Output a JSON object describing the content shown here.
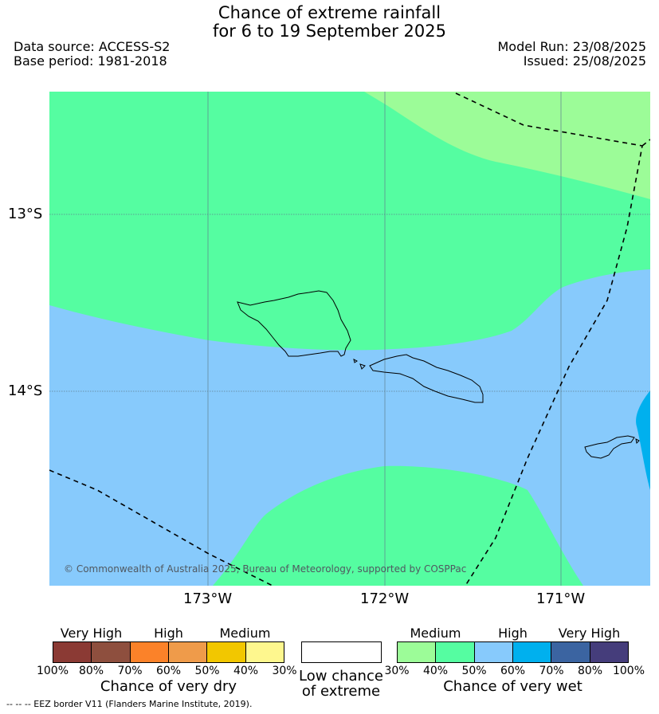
{
  "title": {
    "line1": "Chance of extreme rainfall",
    "line2": "for 6 to 19 September 2025"
  },
  "meta": {
    "data_source": "Data source: ACCESS-S2",
    "base_period": "Base period: 1981-2018",
    "model_run": "Model Run: 23/08/2025",
    "issued": "Issued: 25/08/2025"
  },
  "map": {
    "lat_ticks": [
      "13°S",
      "14°S"
    ],
    "lon_ticks": [
      "173°W",
      "172°W",
      "171°W"
    ],
    "copyright": "© Commonwealth of Australia 2025, Bureau of Meteorology, supported by COSPPac",
    "colors": {
      "wet_30_40": "#9cfc98",
      "wet_40_50": "#55fda1",
      "wet_50_60": "#87cafc",
      "wet_60_70": "#00b0ee"
    }
  },
  "legend": {
    "dry": {
      "headers": [
        "Very High",
        "High",
        "Medium"
      ],
      "colors": [
        "#8b3a34",
        "#8e4f3e",
        "#fb8229",
        "#ef9b4a",
        "#f2c700",
        "#fef78e"
      ],
      "ticks": [
        "100%",
        "80%",
        "70%",
        "60%",
        "50%",
        "40%",
        "30%"
      ],
      "label": "Chance of very dry"
    },
    "low": {
      "label_line1": "Low chance",
      "label_line2": "of extreme"
    },
    "wet": {
      "headers": [
        "Medium",
        "High",
        "Very High"
      ],
      "colors": [
        "#9cfc98",
        "#55fda1",
        "#87cafc",
        "#00b0ee",
        "#3b64a1",
        "#453d7b"
      ],
      "ticks": [
        "30%",
        "40%",
        "50%",
        "60%",
        "70%",
        "80%",
        "100%"
      ],
      "label": "Chance of very wet"
    }
  },
  "footnote": "--  --  -- EEZ border V11 (Flanders Marine Institute, 2019)."
}
